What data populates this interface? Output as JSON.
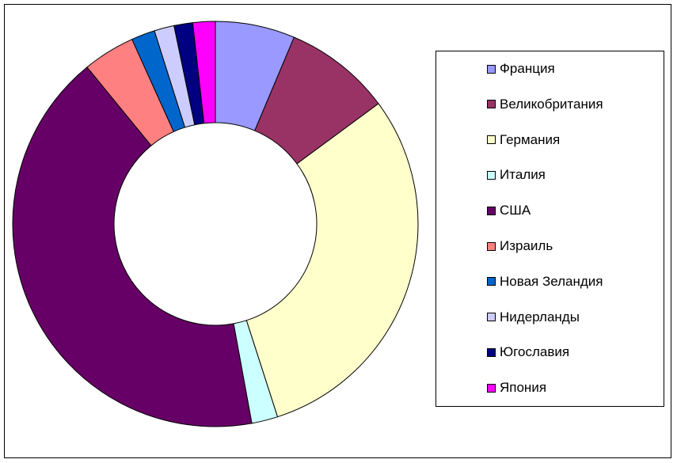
{
  "chart_data": {
    "type": "pie",
    "donut": true,
    "legend_position": "right",
    "categories": [
      "Франция",
      "Великобритания",
      "Германия",
      "Италия",
      "США",
      "Израиль",
      "Новая Зеландия",
      "Нидерланды",
      "Югославия",
      "Япония"
    ],
    "values": [
      6.4,
      8.6,
      30.4,
      2.1,
      42.3,
      4.2,
      1.9,
      1.6,
      1.5,
      1.8
    ],
    "colors": [
      "#9999ff",
      "#993366",
      "#ffffcc",
      "#ccffff",
      "#660066",
      "#ff8080",
      "#0066cc",
      "#ccccff",
      "#000080",
      "#ff00ff"
    ]
  }
}
